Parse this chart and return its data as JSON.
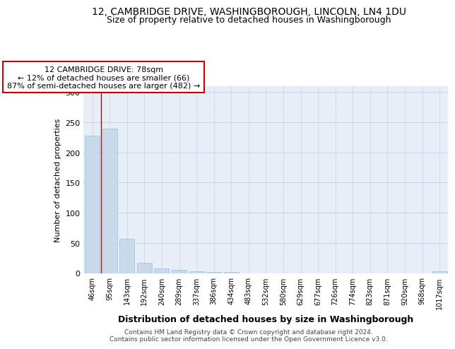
{
  "title": "12, CAMBRIDGE DRIVE, WASHINGBOROUGH, LINCOLN, LN4 1DU",
  "subtitle": "Size of property relative to detached houses in Washingborough",
  "xlabel": "Distribution of detached houses by size in Washingborough",
  "ylabel": "Number of detached properties",
  "categories": [
    "46sqm",
    "95sqm",
    "143sqm",
    "192sqm",
    "240sqm",
    "289sqm",
    "337sqm",
    "386sqm",
    "434sqm",
    "483sqm",
    "532sqm",
    "580sqm",
    "629sqm",
    "677sqm",
    "726sqm",
    "774sqm",
    "823sqm",
    "871sqm",
    "920sqm",
    "968sqm",
    "1017sqm"
  ],
  "values": [
    228,
    239,
    57,
    17,
    8,
    5,
    3,
    2,
    2,
    0,
    0,
    0,
    0,
    0,
    0,
    0,
    0,
    0,
    0,
    0,
    3
  ],
  "bar_color": "#c8daea",
  "bar_edge_color": "#a8c4dc",
  "vline_x": 0.5,
  "vline_color": "#cc0000",
  "annotation_text": "12 CAMBRIDGE DRIVE: 78sqm\n← 12% of detached houses are smaller (66)\n87% of semi-detached houses are larger (482) →",
  "annotation_box_color": "#ffffff",
  "annotation_box_edge": "#cc0000",
  "ylim": [
    0,
    310
  ],
  "yticks": [
    0,
    50,
    100,
    150,
    200,
    250,
    300
  ],
  "footer_line1": "Contains HM Land Registry data © Crown copyright and database right 2024.",
  "footer_line2": "Contains public sector information licensed under the Open Government Licence v3.0.",
  "bg_color": "#e8eef8",
  "fig_bg_color": "#ffffff",
  "grid_color": "#c8d4e4",
  "title_fontsize": 10,
  "subtitle_fontsize": 9,
  "annot_fontsize": 8,
  "xlabel_fontsize": 9,
  "ylabel_fontsize": 8,
  "tick_fontsize": 7,
  "footer_fontsize": 6.5
}
